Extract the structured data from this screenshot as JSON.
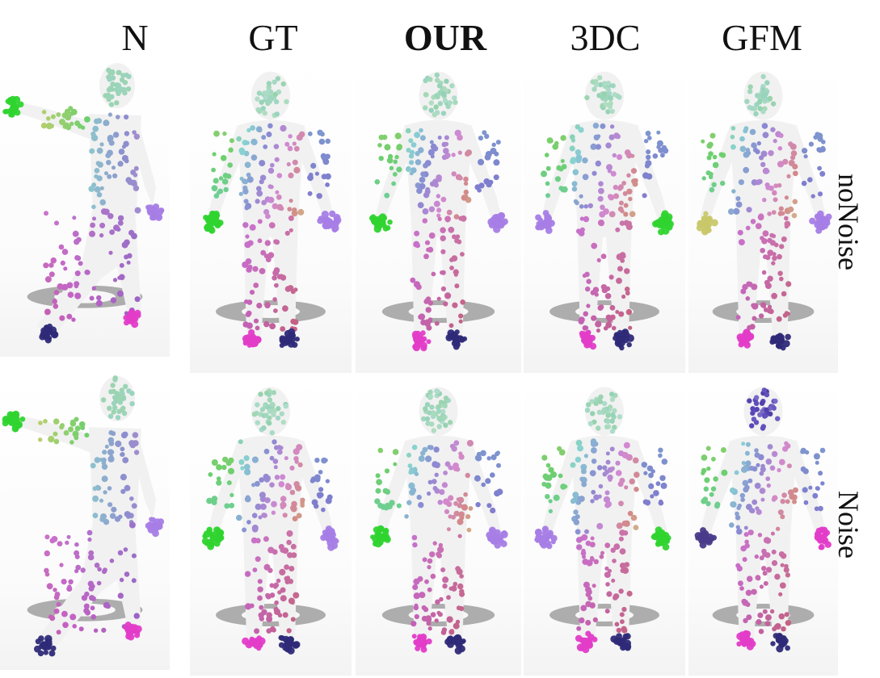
{
  "columns": {
    "n": "N",
    "gt": "GT",
    "our": "OUR",
    "c3dc": "3DC",
    "gfm": "GFM"
  },
  "rows": {
    "no_noise": "noNoise",
    "noise": "Noise"
  },
  "colors": {
    "body": "#f1f1f1",
    "head": "#8fd6a6",
    "hand_green": "#2fd42f",
    "hand_purple": "#a67de6",
    "foot_magenta": "#e13cc8",
    "foot_navy": "#2e2a78",
    "shadow": "#6f6f6f"
  }
}
